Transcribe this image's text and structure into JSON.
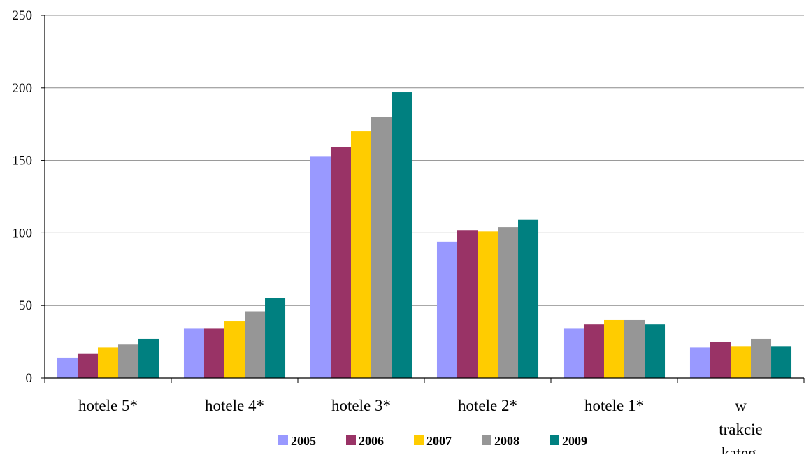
{
  "chart_data": {
    "type": "bar",
    "title": "",
    "xlabel": "",
    "ylabel": "",
    "ylim": [
      0,
      250
    ],
    "yticks": [
      0,
      50,
      100,
      150,
      200,
      250
    ],
    "grid": true,
    "legend_position": "bottom",
    "categories": [
      "hotele 5*",
      "hotele 4*",
      "hotele 3*",
      "hotele 2*",
      "hotele 1*",
      "w trakcie kateg."
    ],
    "series": [
      {
        "name": "2005",
        "color": "#9999ff",
        "values": [
          14,
          34,
          153,
          94,
          34,
          21
        ]
      },
      {
        "name": "2006",
        "color": "#993366",
        "values": [
          17,
          34,
          159,
          102,
          37,
          25
        ]
      },
      {
        "name": "2007",
        "color": "#ffcc00",
        "values": [
          21,
          39,
          170,
          101,
          40,
          22
        ]
      },
      {
        "name": "2008",
        "color": "#969696",
        "values": [
          23,
          46,
          180,
          104,
          40,
          27
        ]
      },
      {
        "name": "2009",
        "color": "#008080",
        "values": [
          27,
          55,
          197,
          109,
          37,
          22
        ]
      }
    ]
  }
}
